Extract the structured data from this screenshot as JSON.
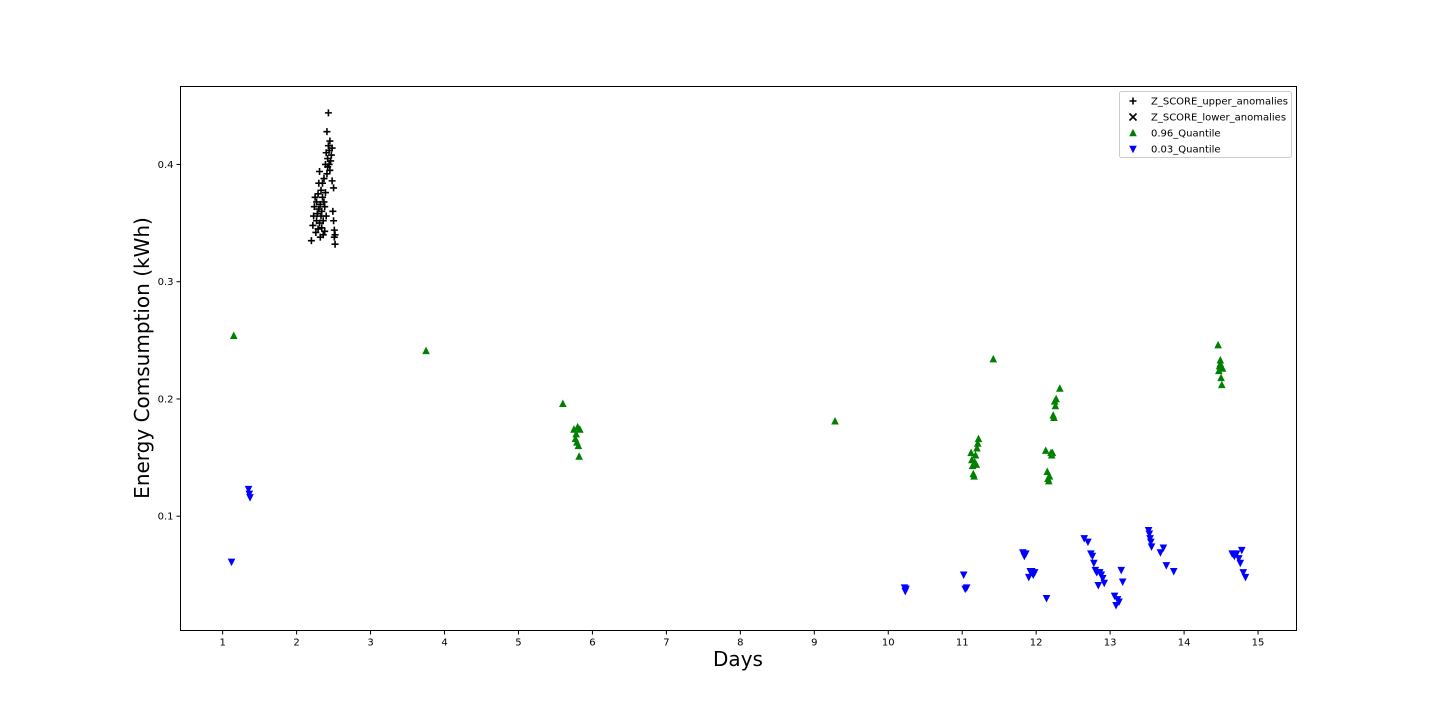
{
  "chart_data": {
    "type": "scatter",
    "title": "",
    "xlabel": "Days",
    "ylabel": "Energy Comsumption (kWh)",
    "xlim": [
      0.43,
      15.52
    ],
    "ylim": [
      0.0025,
      0.4665
    ],
    "xticks": [
      1,
      2,
      3,
      4,
      5,
      6,
      7,
      8,
      9,
      10,
      11,
      12,
      13,
      14,
      15
    ],
    "yticks": [
      0.1,
      0.2,
      0.3,
      0.4
    ],
    "ytick_labels": [
      "0.1",
      "0.2",
      "0.3",
      "0.4"
    ],
    "grid": false,
    "legend_position": "top-right",
    "series": [
      {
        "name": "Z_SCORE_upper_anomalies",
        "marker": "plus",
        "color": "#000000",
        "points": [
          [
            2.2,
            0.335
          ],
          [
            2.22,
            0.348
          ],
          [
            2.23,
            0.356
          ],
          [
            2.24,
            0.364
          ],
          [
            2.25,
            0.372
          ],
          [
            2.26,
            0.342
          ],
          [
            2.27,
            0.352
          ],
          [
            2.27,
            0.368
          ],
          [
            2.28,
            0.358
          ],
          [
            2.29,
            0.345
          ],
          [
            2.29,
            0.375
          ],
          [
            2.3,
            0.362
          ],
          [
            2.3,
            0.384
          ],
          [
            2.31,
            0.35
          ],
          [
            2.31,
            0.394
          ],
          [
            2.32,
            0.338
          ],
          [
            2.32,
            0.366
          ],
          [
            2.33,
            0.356
          ],
          [
            2.33,
            0.378
          ],
          [
            2.34,
            0.36
          ],
          [
            2.34,
            0.346
          ],
          [
            2.35,
            0.384
          ],
          [
            2.35,
            0.372
          ],
          [
            2.36,
            0.352
          ],
          [
            2.36,
            0.34
          ],
          [
            2.37,
            0.368
          ],
          [
            2.37,
            0.388
          ],
          [
            2.38,
            0.343
          ],
          [
            2.38,
            0.364
          ],
          [
            2.39,
            0.4
          ],
          [
            2.39,
            0.376
          ],
          [
            2.4,
            0.356
          ],
          [
            2.4,
            0.41
          ],
          [
            2.41,
            0.392
          ],
          [
            2.41,
            0.428
          ],
          [
            2.42,
            0.405
          ],
          [
            2.42,
            0.398
          ],
          [
            2.43,
            0.444
          ],
          [
            2.43,
            0.416
          ],
          [
            2.44,
            0.4
          ],
          [
            2.44,
            0.412
          ],
          [
            2.45,
            0.395
          ],
          [
            2.45,
            0.42
          ],
          [
            2.46,
            0.403
          ],
          [
            2.47,
            0.408
          ],
          [
            2.48,
            0.386
          ],
          [
            2.48,
            0.414
          ],
          [
            2.49,
            0.36
          ],
          [
            2.5,
            0.352
          ],
          [
            2.5,
            0.38
          ],
          [
            2.51,
            0.344
          ],
          [
            2.51,
            0.338
          ],
          [
            2.52,
            0.332
          ],
          [
            2.52,
            0.34
          ]
        ]
      },
      {
        "name": "Z_SCORE_lower_anomalies",
        "marker": "x",
        "color": "#000000",
        "points": []
      },
      {
        "name": "0.96_Quantile",
        "marker": "triangle-up",
        "color": "#008000",
        "points": [
          [
            1.15,
            0.254
          ],
          [
            3.75,
            0.241
          ],
          [
            5.6,
            0.196
          ],
          [
            5.75,
            0.174
          ],
          [
            5.77,
            0.166
          ],
          [
            5.78,
            0.17
          ],
          [
            5.79,
            0.163
          ],
          [
            5.8,
            0.176
          ],
          [
            5.81,
            0.16
          ],
          [
            5.82,
            0.151
          ],
          [
            5.83,
            0.174
          ],
          [
            9.28,
            0.181
          ],
          [
            11.12,
            0.154
          ],
          [
            11.13,
            0.148
          ],
          [
            11.14,
            0.143
          ],
          [
            11.15,
            0.136
          ],
          [
            11.16,
            0.134
          ],
          [
            11.17,
            0.146
          ],
          [
            11.18,
            0.152
          ],
          [
            11.19,
            0.144
          ],
          [
            11.2,
            0.158
          ],
          [
            11.21,
            0.162
          ],
          [
            11.22,
            0.166
          ],
          [
            11.42,
            0.234
          ],
          [
            12.13,
            0.156
          ],
          [
            12.15,
            0.138
          ],
          [
            12.16,
            0.132
          ],
          [
            12.17,
            0.13
          ],
          [
            12.18,
            0.134
          ],
          [
            12.2,
            0.154
          ],
          [
            12.21,
            0.152
          ],
          [
            12.22,
            0.154
          ],
          [
            12.23,
            0.186
          ],
          [
            12.24,
            0.184
          ],
          [
            12.25,
            0.198
          ],
          [
            12.26,
            0.194
          ],
          [
            12.27,
            0.2
          ],
          [
            12.32,
            0.209
          ],
          [
            14.46,
            0.246
          ],
          [
            14.47,
            0.224
          ],
          [
            14.48,
            0.228
          ],
          [
            14.49,
            0.233
          ],
          [
            14.49,
            0.23
          ],
          [
            14.5,
            0.218
          ],
          [
            14.51,
            0.212
          ],
          [
            14.52,
            0.226
          ]
        ]
      },
      {
        "name": "0.03_Quantile",
        "marker": "triangle-down",
        "color": "#0000ff",
        "points": [
          [
            1.12,
            0.061
          ],
          [
            1.35,
            0.123
          ],
          [
            1.36,
            0.119
          ],
          [
            1.37,
            0.116
          ],
          [
            10.22,
            0.039
          ],
          [
            10.23,
            0.036
          ],
          [
            10.24,
            0.038
          ],
          [
            11.02,
            0.05
          ],
          [
            11.04,
            0.038
          ],
          [
            11.06,
            0.039
          ],
          [
            11.82,
            0.069
          ],
          [
            11.84,
            0.066
          ],
          [
            11.86,
            0.068
          ],
          [
            11.9,
            0.048
          ],
          [
            11.92,
            0.053
          ],
          [
            11.94,
            0.053
          ],
          [
            11.96,
            0.05
          ],
          [
            11.98,
            0.052
          ],
          [
            12.14,
            0.03
          ],
          [
            12.65,
            0.081
          ],
          [
            12.7,
            0.078
          ],
          [
            12.74,
            0.068
          ],
          [
            12.76,
            0.066
          ],
          [
            12.78,
            0.06
          ],
          [
            12.8,
            0.054
          ],
          [
            12.82,
            0.052
          ],
          [
            12.84,
            0.041
          ],
          [
            12.86,
            0.052
          ],
          [
            12.88,
            0.05
          ],
          [
            12.9,
            0.047
          ],
          [
            12.92,
            0.043
          ],
          [
            13.06,
            0.032
          ],
          [
            13.08,
            0.024
          ],
          [
            13.1,
            0.029
          ],
          [
            13.12,
            0.027
          ],
          [
            13.15,
            0.054
          ],
          [
            13.17,
            0.044
          ],
          [
            13.52,
            0.088
          ],
          [
            13.53,
            0.085
          ],
          [
            13.54,
            0.081
          ],
          [
            13.55,
            0.078
          ],
          [
            13.56,
            0.074
          ],
          [
            13.68,
            0.069
          ],
          [
            13.72,
            0.073
          ],
          [
            13.76,
            0.058
          ],
          [
            13.86,
            0.053
          ],
          [
            14.65,
            0.068
          ],
          [
            14.68,
            0.066
          ],
          [
            14.71,
            0.068
          ],
          [
            14.74,
            0.064
          ],
          [
            14.76,
            0.06
          ],
          [
            14.78,
            0.071
          ],
          [
            14.8,
            0.052
          ],
          [
            14.83,
            0.048
          ]
        ]
      }
    ]
  }
}
